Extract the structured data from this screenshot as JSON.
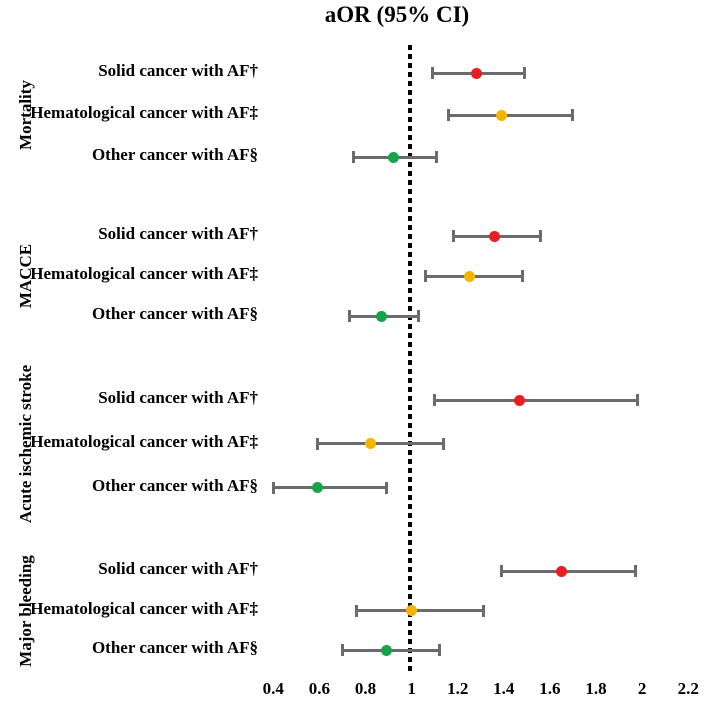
{
  "title": "aOR (95% CI)",
  "chart_data": {
    "type": "forest",
    "title": "aOR (95% CI)",
    "x_tick_labels": [
      "0.4",
      "0.6",
      "0.8",
      "1",
      "1.2",
      "1.4",
      "1.6",
      "1.8",
      "2",
      "2.2"
    ],
    "x_tick_values": [
      0.4,
      0.6,
      0.8,
      1.0,
      1.2,
      1.4,
      1.6,
      1.8,
      2.0,
      2.2
    ],
    "xlim": [
      0.4,
      2.2
    ],
    "reference_value": 1,
    "colors": {
      "solid_cancer_marker": "#ec1c23",
      "hematological_cancer_marker": "#f5b301",
      "other_cancer_marker": "#17a349",
      "ci_line": "#6b6b6b",
      "reference_line": "#000000"
    },
    "groups": [
      {
        "label": "Mortality",
        "rows": [
          {
            "label": "Solid cancer with AF†",
            "color_key": "solid_cancer_marker",
            "or": 1.28,
            "ci_low": 1.09,
            "ci_high": 1.49
          },
          {
            "label": "Hematological cancer with AF‡",
            "color_key": "hematological_cancer_marker",
            "or": 1.39,
            "ci_low": 1.16,
            "ci_high": 1.7
          },
          {
            "label": "Other cancer with AF§",
            "color_key": "other_cancer_marker",
            "or": 0.92,
            "ci_low": 0.75,
            "ci_high": 1.11
          }
        ]
      },
      {
        "label": "MACCE",
        "rows": [
          {
            "label": "Solid cancer with AF†",
            "color_key": "solid_cancer_marker",
            "or": 1.36,
            "ci_low": 1.18,
            "ci_high": 1.56
          },
          {
            "label": "Hematological cancer with AF‡",
            "color_key": "hematological_cancer_marker",
            "or": 1.25,
            "ci_low": 1.06,
            "ci_high": 1.48
          },
          {
            "label": "Other cancer with AF§",
            "color_key": "other_cancer_marker",
            "or": 0.87,
            "ci_low": 0.73,
            "ci_high": 1.03
          }
        ]
      },
      {
        "label": "Acute ischemic stroke",
        "rows": [
          {
            "label": "Solid cancer with AF†",
            "color_key": "solid_cancer_marker",
            "or": 1.47,
            "ci_low": 1.1,
            "ci_high": 1.98
          },
          {
            "label": "Hematological cancer with AF‡",
            "color_key": "hematological_cancer_marker",
            "or": 0.82,
            "ci_low": 0.59,
            "ci_high": 1.14
          },
          {
            "label": "Other cancer with AF§",
            "color_key": "other_cancer_marker",
            "or": 0.59,
            "ci_low": 0.4,
            "ci_high": 0.89
          }
        ]
      },
      {
        "label": "Major bleeding",
        "rows": [
          {
            "label": "Solid cancer with AF†",
            "color_key": "solid_cancer_marker",
            "or": 1.65,
            "ci_low": 1.39,
            "ci_high": 1.97
          },
          {
            "label": "Hematological cancer with AF‡",
            "color_key": "hematological_cancer_marker",
            "or": 1.0,
            "ci_low": 0.76,
            "ci_high": 1.31
          },
          {
            "label": "Other cancer with AF§",
            "color_key": "other_cancer_marker",
            "or": 0.89,
            "ci_low": 0.7,
            "ci_high": 1.12
          }
        ]
      }
    ]
  }
}
